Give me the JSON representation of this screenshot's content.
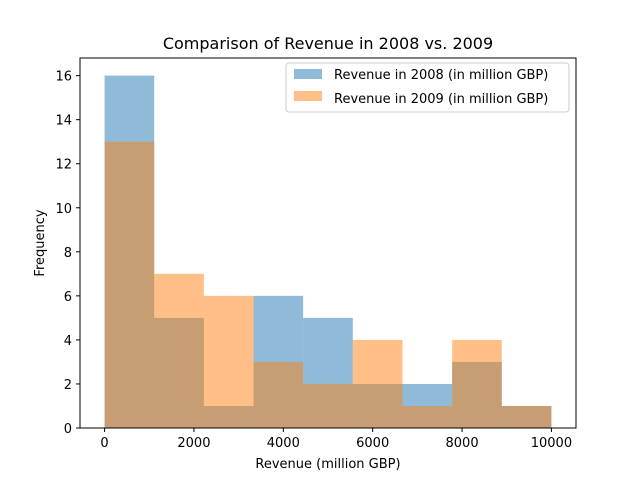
{
  "chart_data": {
    "type": "bar",
    "subtype": "histogram",
    "title": "Comparison of Revenue in 2008 vs. 2009",
    "xlabel": "Revenue (million GBP)",
    "ylabel": "Frequency",
    "xlim": [
      -550,
      10550
    ],
    "ylim": [
      0,
      16.8
    ],
    "xticks": [
      0,
      2000,
      4000,
      6000,
      8000,
      10000
    ],
    "yticks": [
      0,
      2,
      4,
      6,
      8,
      10,
      12,
      14,
      16
    ],
    "grid": false,
    "legend_position": "top-right",
    "bin_edges": [
      0,
      1111,
      2222,
      3333,
      4444,
      5556,
      6667,
      7778,
      8889,
      10000
    ],
    "series": [
      {
        "name": "Revenue in 2008 (in million GBP)",
        "color": "#1f77b4",
        "alpha": 0.5,
        "values": [
          16,
          5,
          1,
          6,
          5,
          2,
          2,
          3,
          1
        ]
      },
      {
        "name": "Revenue in 2009 (in million GBP)",
        "color": "#ff7f0e",
        "alpha": 0.5,
        "values": [
          13,
          7,
          6,
          3,
          2,
          4,
          1,
          4,
          1
        ]
      }
    ]
  }
}
